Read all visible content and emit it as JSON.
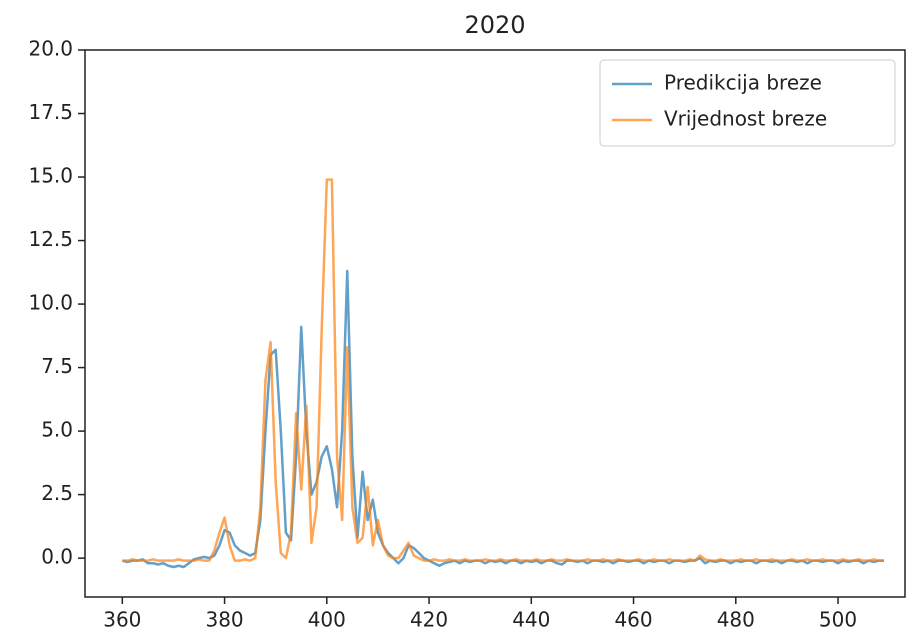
{
  "chart_data": {
    "type": "line",
    "title": "2020",
    "x": [
      360,
      361,
      362,
      363,
      364,
      365,
      366,
      367,
      368,
      369,
      370,
      371,
      372,
      373,
      374,
      375,
      376,
      377,
      378,
      379,
      380,
      381,
      382,
      383,
      384,
      385,
      386,
      387,
      388,
      389,
      390,
      391,
      392,
      393,
      394,
      395,
      396,
      397,
      398,
      399,
      400,
      401,
      402,
      403,
      404,
      405,
      406,
      407,
      408,
      409,
      410,
      411,
      412,
      413,
      414,
      415,
      416,
      417,
      418,
      419,
      420,
      421,
      422,
      423,
      424,
      425,
      426,
      427,
      428,
      429,
      430,
      431,
      432,
      433,
      434,
      435,
      436,
      437,
      438,
      439,
      440,
      441,
      442,
      443,
      444,
      445,
      446,
      447,
      448,
      449,
      450,
      451,
      452,
      453,
      454,
      455,
      456,
      457,
      458,
      459,
      460,
      461,
      462,
      463,
      464,
      465,
      466,
      467,
      468,
      469,
      470,
      471,
      472,
      473,
      474,
      475,
      476,
      477,
      478,
      479,
      480,
      481,
      482,
      483,
      484,
      485,
      486,
      487,
      488,
      489,
      490,
      491,
      492,
      493,
      494,
      495,
      496,
      497,
      498,
      499,
      500,
      501,
      502,
      503,
      504,
      505,
      506,
      507,
      508,
      509
    ],
    "series": [
      {
        "name": "Predikcija breze",
        "color": "#1f77b4",
        "values": [
          -0.1,
          -0.15,
          -0.1,
          -0.1,
          -0.05,
          -0.2,
          -0.2,
          -0.25,
          -0.2,
          -0.3,
          -0.35,
          -0.3,
          -0.35,
          -0.2,
          -0.05,
          0.0,
          0.05,
          0.0,
          0.1,
          0.5,
          1.1,
          1.0,
          0.5,
          0.3,
          0.2,
          0.1,
          0.2,
          1.5,
          5.0,
          8.0,
          8.2,
          5.0,
          1.0,
          0.7,
          4.0,
          9.1,
          5.0,
          2.5,
          3.0,
          4.0,
          4.4,
          3.5,
          2.0,
          5.0,
          11.3,
          4.0,
          0.8,
          3.4,
          1.5,
          2.3,
          1.0,
          0.5,
          0.2,
          0.0,
          -0.2,
          0.0,
          0.5,
          0.4,
          0.2,
          0.0,
          -0.1,
          -0.2,
          -0.3,
          -0.2,
          -0.15,
          -0.1,
          -0.2,
          -0.1,
          -0.15,
          -0.1,
          -0.1,
          -0.2,
          -0.1,
          -0.15,
          -0.1,
          -0.2,
          -0.1,
          -0.1,
          -0.2,
          -0.1,
          -0.15,
          -0.1,
          -0.2,
          -0.1,
          -0.1,
          -0.2,
          -0.25,
          -0.1,
          -0.1,
          -0.15,
          -0.1,
          -0.2,
          -0.1,
          -0.1,
          -0.15,
          -0.1,
          -0.2,
          -0.1,
          -0.1,
          -0.15,
          -0.1,
          -0.1,
          -0.2,
          -0.1,
          -0.15,
          -0.1,
          -0.1,
          -0.2,
          -0.1,
          -0.1,
          -0.15,
          -0.1,
          -0.1,
          0.0,
          -0.2,
          -0.1,
          -0.15,
          -0.1,
          -0.1,
          -0.2,
          -0.1,
          -0.15,
          -0.1,
          -0.1,
          -0.2,
          -0.1,
          -0.1,
          -0.15,
          -0.1,
          -0.2,
          -0.1,
          -0.1,
          -0.15,
          -0.1,
          -0.2,
          -0.1,
          -0.1,
          -0.15,
          -0.1,
          -0.1,
          -0.2,
          -0.1,
          -0.15,
          -0.1,
          -0.1,
          -0.2,
          -0.1,
          -0.15,
          -0.1,
          -0.1
        ]
      },
      {
        "name": "Vrijednost breze",
        "color": "#ff7f0e",
        "values": [
          -0.1,
          -0.1,
          -0.05,
          -0.1,
          -0.1,
          -0.1,
          -0.05,
          -0.1,
          -0.1,
          -0.1,
          -0.1,
          -0.05,
          -0.1,
          -0.1,
          -0.1,
          -0.05,
          -0.1,
          -0.1,
          0.3,
          1.0,
          1.6,
          0.5,
          -0.1,
          -0.1,
          -0.05,
          -0.1,
          0.0,
          2.0,
          7.0,
          8.5,
          3.0,
          0.2,
          0.0,
          1.0,
          5.7,
          2.7,
          6.0,
          0.6,
          2.0,
          9.0,
          14.9,
          14.9,
          4.0,
          1.5,
          8.3,
          2.0,
          0.6,
          0.8,
          2.8,
          0.5,
          1.5,
          0.5,
          0.1,
          0.0,
          0.0,
          0.3,
          0.6,
          0.1,
          0.0,
          -0.1,
          -0.1,
          -0.05,
          -0.1,
          -0.1,
          -0.05,
          -0.1,
          -0.1,
          -0.05,
          -0.1,
          -0.1,
          -0.1,
          -0.05,
          -0.1,
          -0.1,
          -0.05,
          -0.1,
          -0.1,
          -0.05,
          -0.1,
          -0.1,
          -0.1,
          -0.05,
          -0.1,
          -0.1,
          -0.05,
          -0.1,
          -0.1,
          -0.05,
          -0.1,
          -0.1,
          -0.1,
          -0.05,
          -0.1,
          -0.1,
          -0.05,
          -0.1,
          -0.1,
          -0.05,
          -0.1,
          -0.1,
          -0.1,
          -0.05,
          -0.1,
          -0.1,
          -0.05,
          -0.1,
          -0.1,
          -0.05,
          -0.1,
          -0.1,
          -0.1,
          -0.05,
          -0.1,
          0.1,
          -0.05,
          -0.1,
          -0.1,
          -0.05,
          -0.1,
          -0.1,
          -0.1,
          -0.05,
          -0.1,
          -0.1,
          -0.05,
          -0.1,
          -0.1,
          -0.05,
          -0.1,
          -0.1,
          -0.1,
          -0.05,
          -0.1,
          -0.1,
          -0.05,
          -0.1,
          -0.1,
          -0.05,
          -0.1,
          -0.1,
          -0.1,
          -0.05,
          -0.1,
          -0.1,
          -0.05,
          -0.1,
          -0.1,
          -0.05,
          -0.1,
          -0.1
        ]
      }
    ],
    "xlim": [
      352.7,
      513.1
    ],
    "xticks": [
      360,
      380,
      400,
      420,
      440,
      460,
      480,
      500
    ],
    "ylim": [
      -1.53,
      20.0
    ],
    "yticks": [
      {
        "value": 0,
        "label": "0.0"
      },
      2.5,
      {
        "value": 5,
        "label": "5.0"
      },
      7.5,
      {
        "value": 10,
        "label": "10.0"
      },
      12.5,
      {
        "value": 15,
        "label": "15.0"
      },
      17.5,
      {
        "value": 20,
        "label": "20.0"
      }
    ],
    "legend": "upper right"
  }
}
